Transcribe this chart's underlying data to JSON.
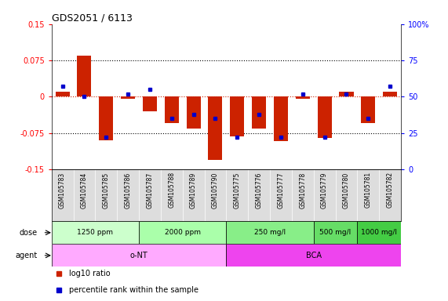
{
  "title": "GDS2051 / 6113",
  "samples": [
    "GSM105783",
    "GSM105784",
    "GSM105785",
    "GSM105786",
    "GSM105787",
    "GSM105788",
    "GSM105789",
    "GSM105790",
    "GSM105775",
    "GSM105776",
    "GSM105777",
    "GSM105778",
    "GSM105779",
    "GSM105780",
    "GSM105781",
    "GSM105782"
  ],
  "log10_ratio": [
    0.01,
    0.085,
    -0.09,
    -0.005,
    -0.03,
    -0.055,
    -0.065,
    -0.13,
    -0.082,
    -0.065,
    -0.092,
    -0.005,
    -0.085,
    0.01,
    -0.055,
    0.01
  ],
  "percentile": [
    57,
    50,
    22,
    52,
    55,
    35,
    38,
    35,
    22,
    38,
    22,
    52,
    22,
    52,
    35,
    57
  ],
  "bar_color": "#cc2200",
  "dot_color": "#0000cc",
  "ylim": [
    -0.15,
    0.15
  ],
  "yticks": [
    -0.15,
    -0.075,
    0,
    0.075,
    0.15
  ],
  "ytick_labels_left": [
    "-0.15",
    "-0.075",
    "0",
    "0.075",
    "0.15"
  ],
  "ytick_labels_right": [
    "0",
    "25",
    "50",
    "75",
    "100%"
  ],
  "dose_groups": [
    {
      "label": "1250 ppm",
      "start": 0,
      "end": 4,
      "color": "#ccffcc"
    },
    {
      "label": "2000 ppm",
      "start": 4,
      "end": 8,
      "color": "#aaffaa"
    },
    {
      "label": "250 mg/l",
      "start": 8,
      "end": 12,
      "color": "#88ee88"
    },
    {
      "label": "500 mg/l",
      "start": 12,
      "end": 14,
      "color": "#66dd66"
    },
    {
      "label": "1000 mg/l",
      "start": 14,
      "end": 16,
      "color": "#44cc44"
    }
  ],
  "agent_groups": [
    {
      "label": "o-NT",
      "start": 0,
      "end": 8,
      "color": "#ffaaff"
    },
    {
      "label": "BCA",
      "start": 8,
      "end": 16,
      "color": "#ee44ee"
    }
  ],
  "legend_items": [
    {
      "label": "log10 ratio",
      "color": "#cc2200"
    },
    {
      "label": "percentile rank within the sample",
      "color": "#0000cc"
    }
  ],
  "dose_label": "dose",
  "agent_label": "agent",
  "bg_color": "#ffffff",
  "label_bg": "#dddddd",
  "zero_line_color": "#cc2200"
}
